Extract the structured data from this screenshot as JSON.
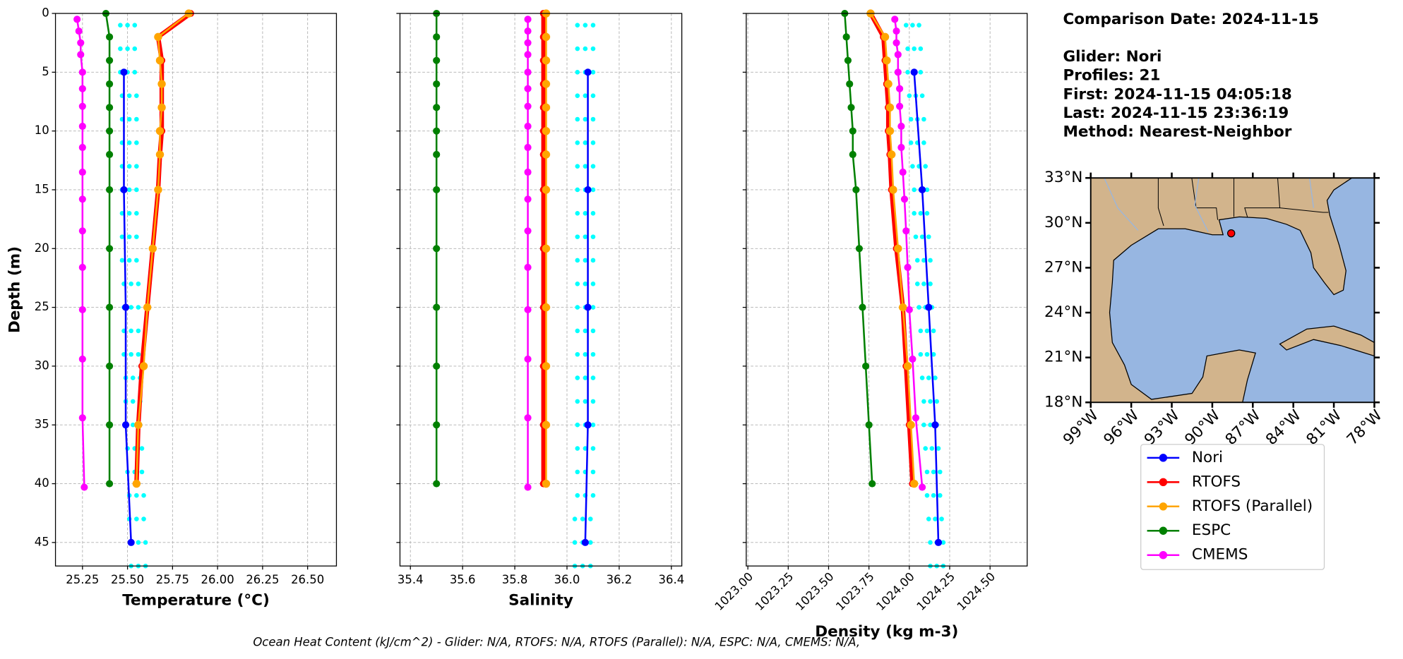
{
  "info": [
    "Comparison Date: 2024-11-15",
    "Glider: Nori",
    "Profiles: 21",
    "First: 2024-11-15 04:05:18",
    "Last: 2024-11-15 23:36:19",
    "Method: Nearest-Neighbor"
  ],
  "footer": "Ocean Heat Content (kJ/cm^2) - Glider: N/A,  RTOFS: N/A,  RTOFS (Parallel): N/A,  ESPC: N/A,  CMEMS: N/A,",
  "legend": [
    {
      "name": "Nori",
      "color": "#0000ff"
    },
    {
      "name": "RTOFS",
      "color": "#ff0000"
    },
    {
      "name": "RTOFS (Parallel)",
      "color": "#ffa500"
    },
    {
      "name": "ESPC",
      "color": "#008000"
    },
    {
      "name": "CMEMS",
      "color": "#ff00ff"
    }
  ],
  "depth_axis": {
    "label": "Depth (m)",
    "ylim": [
      47,
      0
    ],
    "yticks": [
      0,
      5,
      10,
      15,
      20,
      25,
      30,
      35,
      40,
      45
    ],
    "grid": true
  },
  "depths": [
    [
      5,
      15,
      25,
      35,
      45
    ],
    [
      0,
      2,
      4,
      6,
      8,
      10,
      12,
      15,
      20,
      25,
      30,
      35,
      40
    ],
    [
      0,
      2,
      4,
      6,
      8,
      10,
      12,
      15,
      20,
      25,
      30,
      35,
      40
    ],
    [
      0,
      2,
      4,
      6,
      8,
      10,
      12,
      15,
      20,
      25,
      30,
      35,
      40
    ],
    [
      0.5,
      1.5,
      2.5,
      3.5,
      5,
      6.4,
      7.9,
      9.6,
      11.4,
      13.5,
      15.8,
      18.5,
      21.6,
      25.2,
      29.4,
      34.4,
      40.3
    ]
  ],
  "profile_depths": [
    1,
    3,
    5,
    7,
    9,
    11,
    13,
    15,
    17,
    19,
    21,
    23,
    25,
    27,
    29,
    31,
    33,
    35,
    37,
    39,
    41,
    43,
    45,
    47
  ],
  "profile_color": "#00ffff",
  "chart_data": [
    {
      "type": "line",
      "xlabel": "Temperature (°C)",
      "xlim": [
        25.1,
        26.66
      ],
      "xticks": [
        25.25,
        {
          "value": 25.5,
          "label": "25.50"
        },
        25.75,
        {
          "value": 26,
          "label": "26.00"
        },
        26.25,
        {
          "value": 26.5,
          "label": "26.50"
        }
      ],
      "series": [
        {
          "values": [
            25.48,
            25.48,
            25.49,
            25.49,
            25.52
          ]
        },
        {
          "values": [
            25.85,
            25.67,
            25.69,
            25.69,
            25.69,
            25.69,
            25.68,
            25.67,
            25.64,
            25.61,
            25.58,
            25.56,
            25.55
          ]
        },
        {
          "values": [
            25.84,
            25.67,
            25.68,
            25.69,
            25.69,
            25.68,
            25.68,
            25.67,
            25.64,
            25.61,
            25.59,
            25.56,
            25.55
          ]
        },
        {
          "values": [
            25.38,
            25.4,
            25.4,
            25.4,
            25.4,
            25.4,
            25.4,
            25.4,
            25.4,
            25.4,
            25.4,
            25.4,
            25.4
          ]
        },
        {
          "values": [
            25.22,
            25.23,
            25.24,
            25.24,
            25.25,
            25.25,
            25.25,
            25.25,
            25.25,
            25.25,
            25.25,
            25.25,
            25.25,
            25.25,
            25.25,
            25.25,
            25.26
          ]
        }
      ],
      "profiles": [
        [
          25.46,
          25.46,
          25.46,
          25.47,
          25.47,
          25.47,
          25.47,
          25.47,
          25.47,
          25.47,
          25.47,
          25.48,
          25.48,
          25.48,
          25.48,
          25.49,
          25.49,
          25.49,
          25.5,
          25.5,
          25.51,
          25.51,
          25.52,
          25.52
        ],
        [
          25.5,
          25.5,
          25.5,
          25.51,
          25.51,
          25.51,
          25.51,
          25.51,
          25.51,
          25.51,
          25.51,
          25.52,
          25.52,
          25.52,
          25.52,
          25.53,
          25.53,
          25.53,
          25.54,
          25.54,
          25.55,
          25.55,
          25.56,
          25.56
        ],
        [
          25.54,
          25.54,
          25.54,
          25.55,
          25.55,
          25.55,
          25.55,
          25.55,
          25.55,
          25.55,
          25.55,
          25.56,
          25.56,
          25.56,
          25.56,
          25.57,
          25.57,
          25.57,
          25.58,
          25.58,
          25.59,
          25.59,
          25.6,
          25.6
        ]
      ]
    },
    {
      "type": "line",
      "xlabel": "Salinity",
      "xlim": [
        35.36,
        36.44
      ],
      "xticks": [
        35.4,
        35.6,
        35.8,
        {
          "value": 36,
          "label": "36.0"
        },
        36.2,
        36.4
      ],
      "series": [
        {
          "values": [
            36.08,
            36.08,
            36.08,
            36.08,
            36.07
          ]
        },
        {
          "values": [
            35.91,
            35.91,
            35.91,
            35.91,
            35.91,
            35.91,
            35.91,
            35.91,
            35.91,
            35.91,
            35.91,
            35.91,
            35.91
          ]
        },
        {
          "values": [
            35.92,
            35.92,
            35.92,
            35.92,
            35.92,
            35.92,
            35.92,
            35.92,
            35.92,
            35.92,
            35.92,
            35.92,
            35.92
          ]
        },
        {
          "values": [
            35.5,
            35.5,
            35.5,
            35.5,
            35.5,
            35.5,
            35.5,
            35.5,
            35.5,
            35.5,
            35.5,
            35.5,
            35.5
          ]
        },
        {
          "values": [
            35.85,
            35.85,
            35.85,
            35.85,
            35.85,
            35.85,
            35.85,
            35.85,
            35.85,
            35.85,
            35.85,
            35.85,
            35.85,
            35.85,
            35.85,
            35.85,
            35.85
          ]
        }
      ],
      "profiles": [
        [
          36.04,
          36.04,
          36.04,
          36.04,
          36.04,
          36.04,
          36.04,
          36.04,
          36.04,
          36.04,
          36.04,
          36.04,
          36.04,
          36.04,
          36.04,
          36.04,
          36.04,
          36.04,
          36.04,
          36.04,
          36.04,
          36.03,
          36.03,
          36.03
        ],
        [
          36.07,
          36.07,
          36.07,
          36.07,
          36.07,
          36.07,
          36.07,
          36.07,
          36.07,
          36.07,
          36.07,
          36.07,
          36.07,
          36.07,
          36.07,
          36.07,
          36.07,
          36.07,
          36.07,
          36.07,
          36.07,
          36.06,
          36.06,
          36.06
        ],
        [
          36.1,
          36.1,
          36.1,
          36.1,
          36.1,
          36.1,
          36.1,
          36.1,
          36.1,
          36.1,
          36.1,
          36.1,
          36.1,
          36.1,
          36.1,
          36.1,
          36.1,
          36.1,
          36.1,
          36.1,
          36.1,
          36.09,
          36.09,
          36.09
        ]
      ]
    },
    {
      "type": "line",
      "xlabel": "Density (kg m-3)",
      "xlim": [
        1022.99,
        1024.73
      ],
      "xticks": [
        {
          "value": 1023,
          "label": "1023.00"
        },
        1023.25,
        {
          "value": 1023.5,
          "label": "1023.50"
        },
        1023.75,
        {
          "value": 1024,
          "label": "1024.00"
        },
        1024.25,
        {
          "value": 1024.5,
          "label": "1024.50"
        }
      ],
      "series": [
        {
          "values": [
            1024.03,
            1024.08,
            1024.12,
            1024.16,
            1024.18
          ]
        },
        {
          "values": [
            1023.76,
            1023.84,
            1023.85,
            1023.86,
            1023.87,
            1023.87,
            1023.88,
            1023.89,
            1023.92,
            1023.96,
            1023.98,
            1024.0,
            1024.02
          ]
        },
        {
          "values": [
            1023.76,
            1023.85,
            1023.86,
            1023.87,
            1023.88,
            1023.88,
            1023.89,
            1023.9,
            1023.93,
            1023.96,
            1023.99,
            1024.01,
            1024.03
          ]
        },
        {
          "values": [
            1023.6,
            1023.61,
            1023.62,
            1023.63,
            1023.64,
            1023.65,
            1023.65,
            1023.67,
            1023.69,
            1023.71,
            1023.73,
            1023.75,
            1023.77
          ]
        },
        {
          "values": [
            1023.91,
            1023.92,
            1023.92,
            1023.93,
            1023.93,
            1023.94,
            1023.94,
            1023.95,
            1023.95,
            1023.96,
            1023.97,
            1023.98,
            1023.99,
            1024.0,
            1024.02,
            1024.04,
            1024.08
          ]
        }
      ],
      "profiles": [
        [
          1023.98,
          1023.99,
          1023.99,
          1024.0,
          1024.01,
          1024.01,
          1024.02,
          1024.03,
          1024.03,
          1024.04,
          1024.05,
          1024.05,
          1024.06,
          1024.07,
          1024.07,
          1024.08,
          1024.09,
          1024.09,
          1024.1,
          1024.11,
          1024.11,
          1024.12,
          1024.13,
          1024.13
        ],
        [
          1024.02,
          1024.03,
          1024.03,
          1024.04,
          1024.05,
          1024.05,
          1024.06,
          1024.07,
          1024.07,
          1024.08,
          1024.09,
          1024.09,
          1024.1,
          1024.11,
          1024.11,
          1024.12,
          1024.13,
          1024.13,
          1024.14,
          1024.15,
          1024.15,
          1024.16,
          1024.17,
          1024.17
        ],
        [
          1024.06,
          1024.07,
          1024.07,
          1024.08,
          1024.09,
          1024.09,
          1024.1,
          1024.11,
          1024.11,
          1024.12,
          1024.13,
          1024.13,
          1024.14,
          1024.15,
          1024.15,
          1024.16,
          1024.17,
          1024.17,
          1024.18,
          1024.19,
          1024.19,
          1024.2,
          1024.21,
          1024.21
        ]
      ]
    }
  ],
  "map": {
    "xlim": [
      -99,
      -78
    ],
    "ylim": [
      18,
      33
    ],
    "xticks": [
      {
        "value": -99,
        "label": "99°W"
      },
      {
        "value": -96,
        "label": "96°W"
      },
      {
        "value": -93,
        "label": "93°W"
      },
      {
        "value": -90,
        "label": "90°W"
      },
      {
        "value": -87,
        "label": "87°W"
      },
      {
        "value": -84,
        "label": "84°W"
      },
      {
        "value": -81,
        "label": "81°W"
      },
      {
        "value": -78,
        "label": "78°W"
      }
    ],
    "yticks": [
      {
        "value": 18,
        "label": "18°N"
      },
      {
        "value": 21,
        "label": "21°N"
      },
      {
        "value": 24,
        "label": "24°N"
      },
      {
        "value": 27,
        "label": "27°N"
      },
      {
        "value": 30,
        "label": "30°N"
      },
      {
        "value": 33,
        "label": "33°N"
      }
    ],
    "glider": {
      "lon": -88.6,
      "lat": 29.3,
      "color": "#ff0000"
    }
  }
}
